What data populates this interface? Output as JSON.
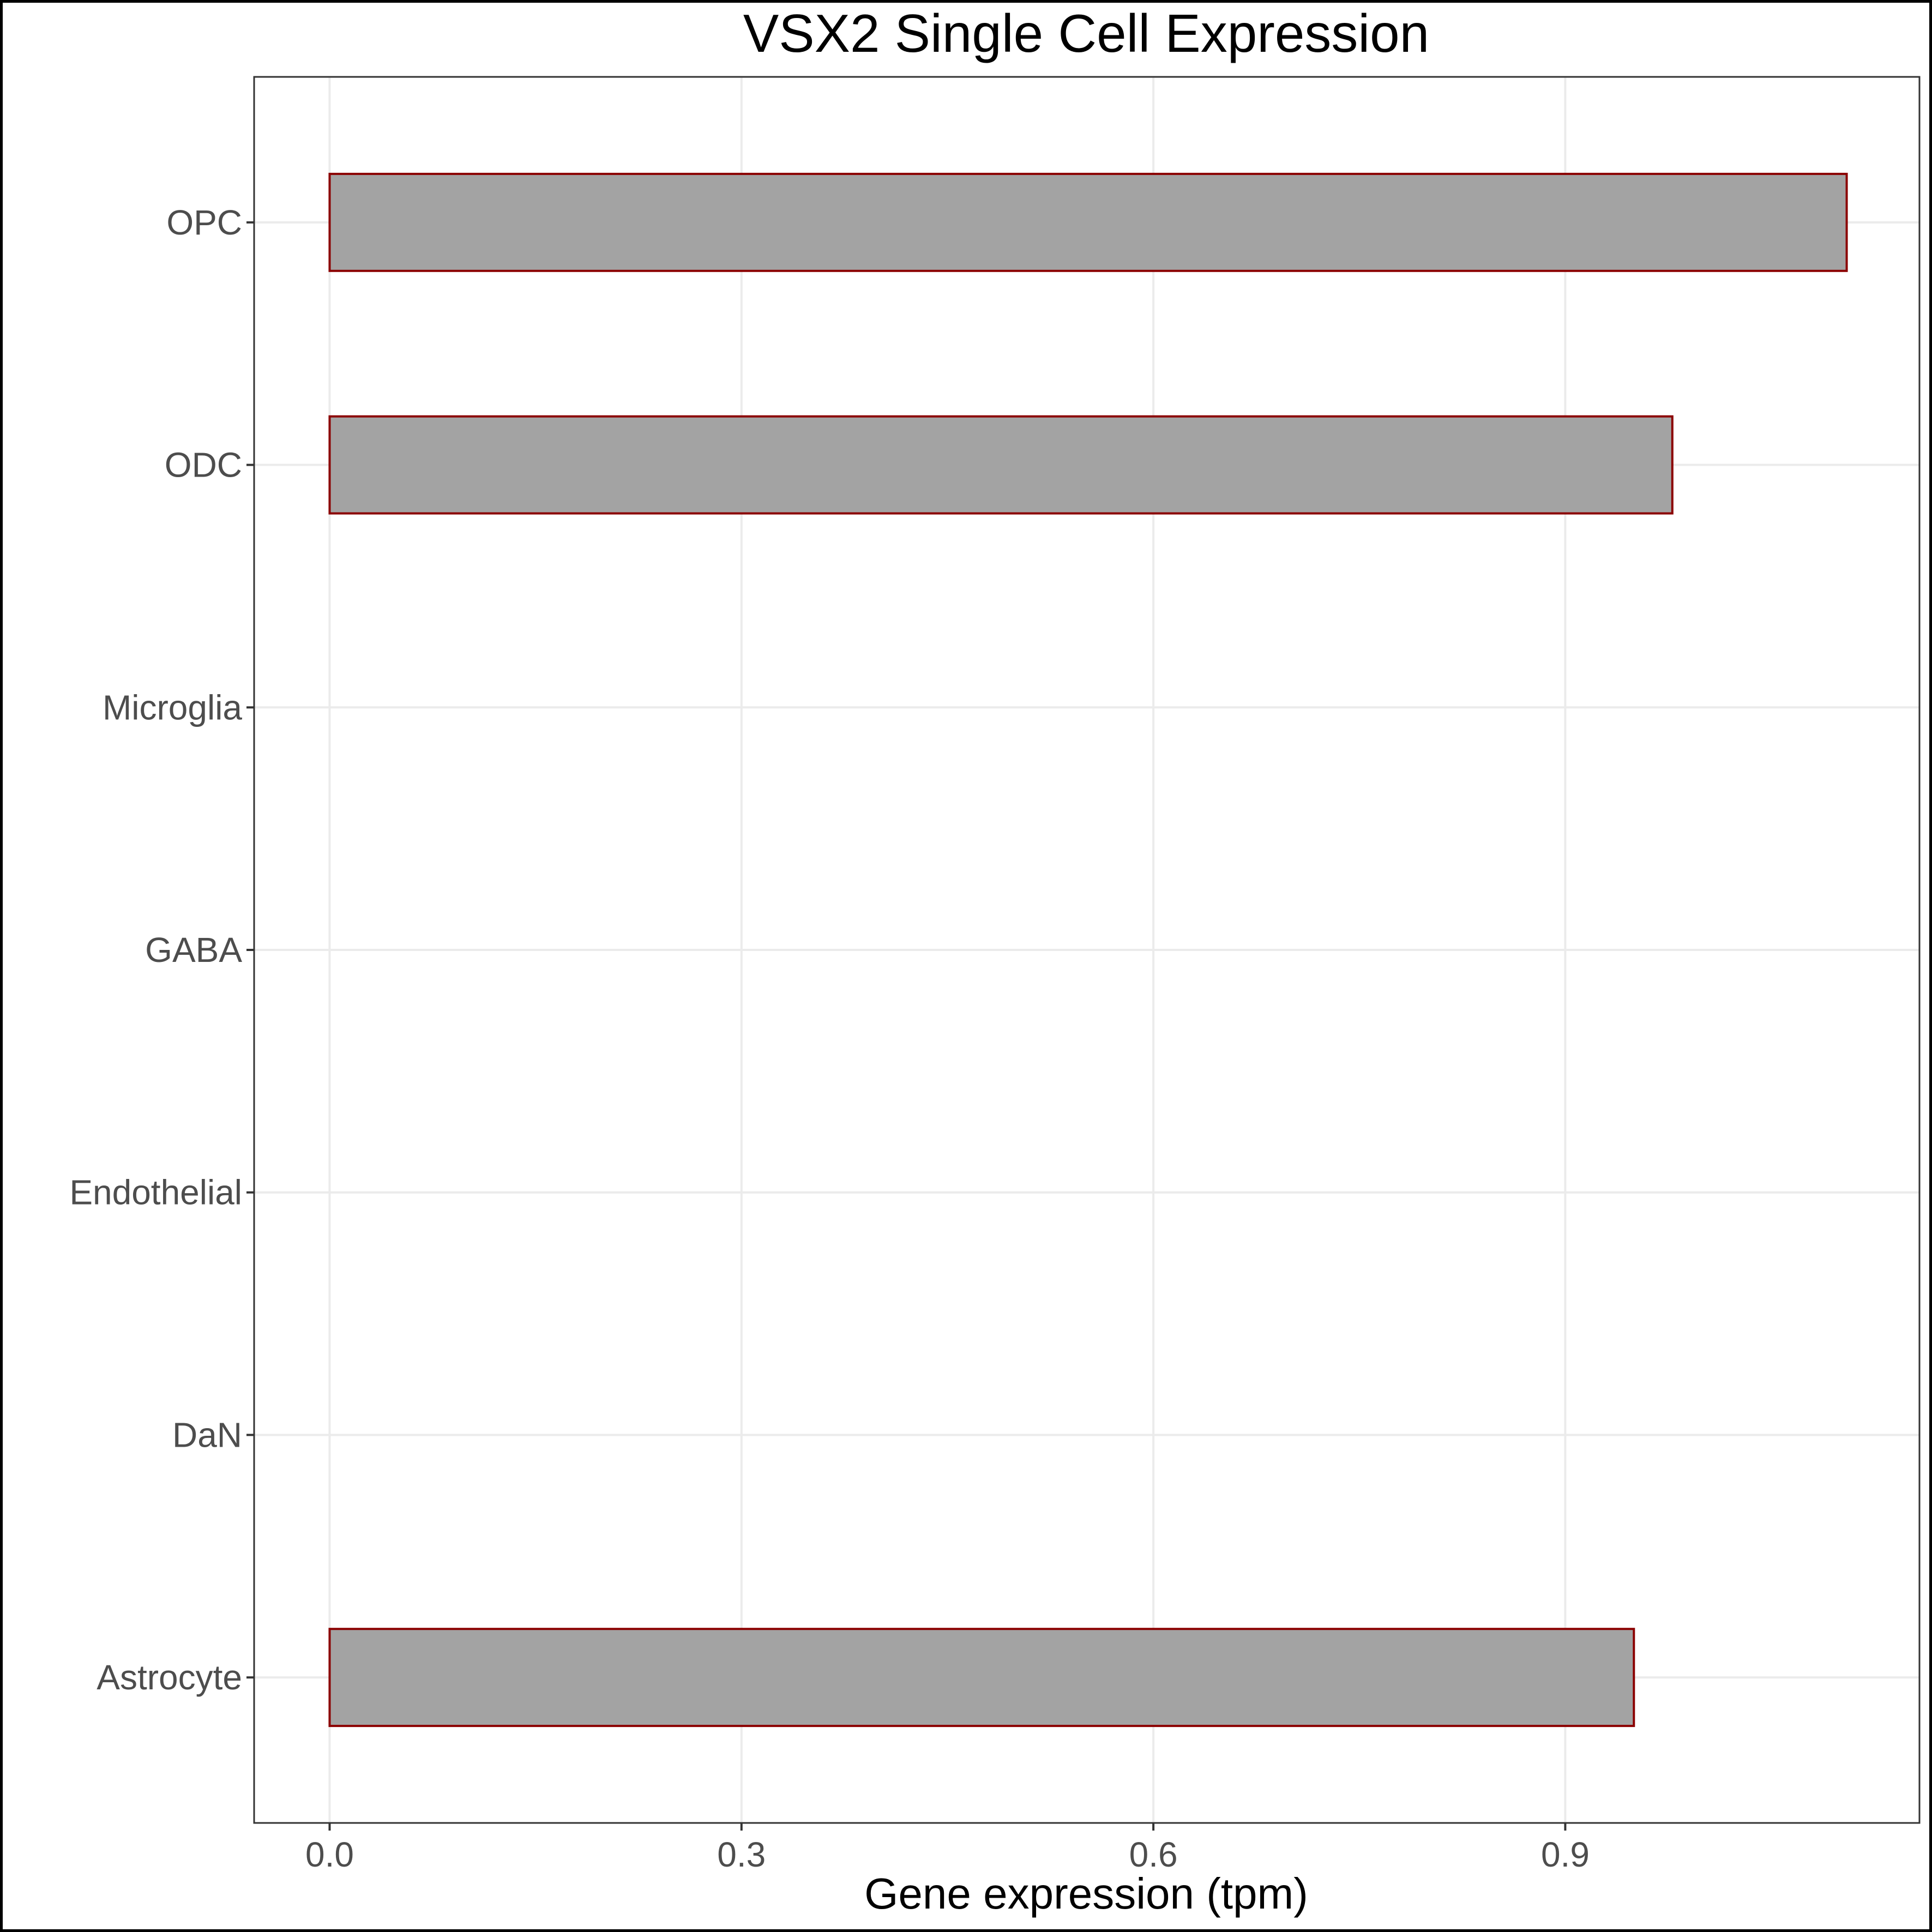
{
  "chart_data": {
    "type": "bar",
    "orientation": "horizontal",
    "title": "VSX2 Single Cell Expression",
    "xlabel": "Gene expression (tpm)",
    "ylabel": "",
    "categories": [
      "Astrocyte",
      "DaN",
      "Endothelial",
      "GABA",
      "Microglia",
      "ODC",
      "OPC"
    ],
    "values": [
      0.95,
      0.0,
      0.0,
      0.0,
      0.0,
      0.978,
      1.105
    ],
    "xlim": [
      -0.055,
      1.158
    ],
    "xticks": [
      0.0,
      0.3,
      0.6,
      0.9
    ],
    "xtick_labels": [
      "0.0",
      "0.3",
      "0.6",
      "0.9"
    ],
    "grid": true,
    "colors": {
      "bar_fill": "#a3a3a3",
      "bar_outline": "#8b0000",
      "grid": "#ebebeb",
      "tick_text": "#4d4d4d"
    }
  }
}
